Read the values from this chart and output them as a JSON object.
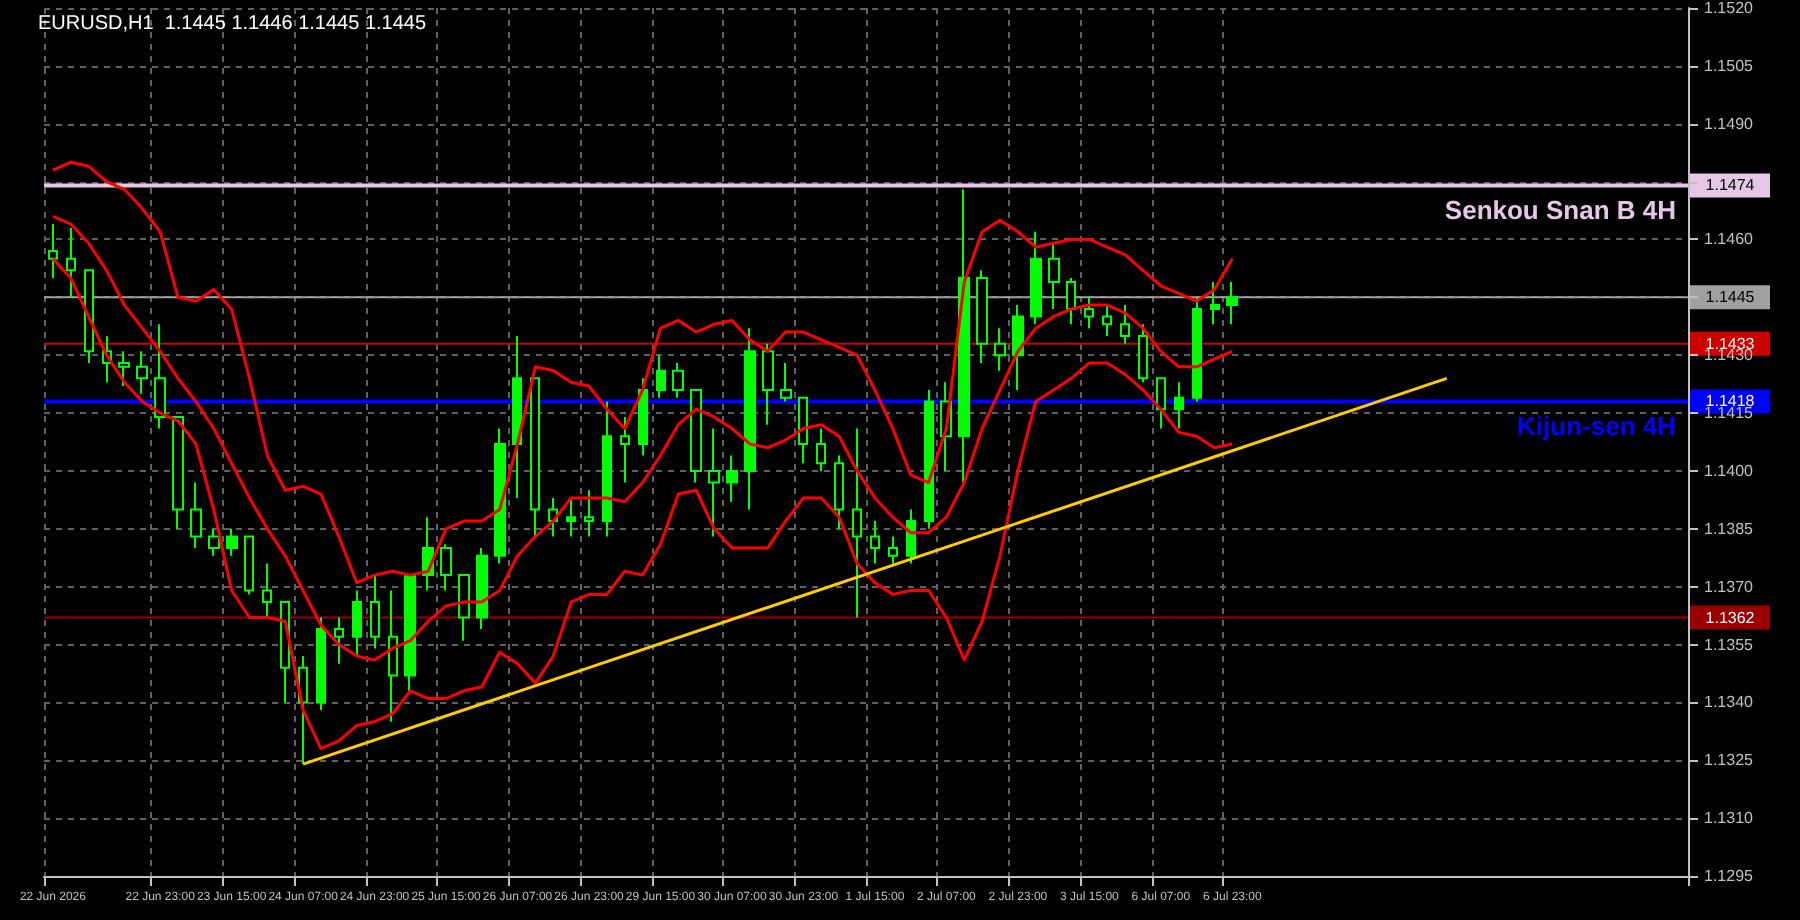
{
  "chart_data": {
    "type": "candlestick",
    "title": "EURUSD,H1  1.1445 1.1446 1.1445 1.1445",
    "categories": [
      "22 Jun 2026",
      null,
      null,
      null,
      null,
      null,
      "22 Jun 23:00",
      null,
      null,
      null,
      "23 Jun 15:00",
      null,
      null,
      null,
      "24 Jun 07:00",
      null,
      null,
      null,
      "24 Jun 23:00",
      null,
      null,
      null,
      "25 Jun 15:00",
      null,
      null,
      null,
      "26 Jun 07:00",
      null,
      null,
      null,
      "26 Jun 23:00",
      null,
      null,
      null,
      "29 Jun 15:00",
      null,
      null,
      null,
      "30 Jun 07:00",
      null,
      null,
      null,
      "30 Jun 23:00",
      null,
      null,
      null,
      "1 Jul 15:00",
      null,
      null,
      null,
      "2 Jul 07:00",
      null,
      null,
      null,
      "2 Jul 23:00",
      null,
      null,
      null,
      "3 Jul 15:00",
      null,
      null,
      null,
      "6 Jul 07:00",
      null,
      null,
      null,
      "6 Jul 23:00",
      null,
      null,
      null,
      null,
      null,
      null,
      null,
      null,
      null,
      null,
      null,
      null,
      null,
      null,
      null,
      null,
      null,
      null,
      null,
      null,
      null,
      null,
      null,
      null,
      null
    ],
    "series": [
      {
        "color": "#00ff00",
        "ohlc": [
          [
            1.1457,
            1.1464,
            1.145,
            1.1455
          ],
          [
            1.1455,
            1.1463,
            1.1445,
            1.1452
          ],
          [
            1.1452,
            1.1452,
            1.1428,
            1.1431
          ],
          [
            1.1431,
            1.1435,
            1.1423,
            1.1428
          ],
          [
            1.1428,
            1.1431,
            1.1422,
            1.1427
          ],
          [
            1.1427,
            1.1431,
            1.142,
            1.1424
          ],
          [
            1.1424,
            1.1438,
            1.1411,
            1.1414
          ],
          [
            1.1414,
            1.1414,
            1.1385,
            1.139
          ],
          [
            1.139,
            1.1397,
            1.138,
            1.1383
          ],
          [
            1.1383,
            1.1385,
            1.1378,
            1.138
          ],
          [
            1.138,
            1.1385,
            1.1378,
            1.1383
          ],
          [
            1.1383,
            1.1383,
            1.1368,
            1.1369
          ],
          [
            1.1369,
            1.1376,
            1.1362,
            1.1366
          ],
          [
            1.1366,
            1.1366,
            1.134,
            1.1349
          ],
          [
            1.1349,
            1.1352,
            1.1324,
            1.134
          ],
          [
            1.134,
            1.1362,
            1.1338,
            1.1359
          ],
          [
            1.1359,
            1.1362,
            1.135,
            1.1357
          ],
          [
            1.1357,
            1.1369,
            1.1352,
            1.1366
          ],
          [
            1.1366,
            1.1373,
            1.1354,
            1.1357
          ],
          [
            1.1357,
            1.1369,
            1.1335,
            1.1347
          ],
          [
            1.1347,
            1.1373,
            1.1343,
            1.1373
          ],
          [
            1.1373,
            1.1388,
            1.1369,
            1.138
          ],
          [
            1.138,
            1.1381,
            1.1369,
            1.1373
          ],
          [
            1.1373,
            1.1373,
            1.1356,
            1.1362
          ],
          [
            1.1362,
            1.138,
            1.1359,
            1.1378
          ],
          [
            1.1378,
            1.1411,
            1.1376,
            1.1407
          ],
          [
            1.1407,
            1.1435,
            1.1393,
            1.1424
          ],
          [
            1.1424,
            1.1424,
            1.1383,
            1.139
          ],
          [
            1.139,
            1.1393,
            1.1383,
            1.1387
          ],
          [
            1.1387,
            1.1393,
            1.1383,
            1.1388
          ],
          [
            1.1388,
            1.1395,
            1.1383,
            1.1387
          ],
          [
            1.1387,
            1.1418,
            1.1383,
            1.1409
          ],
          [
            1.1409,
            1.1414,
            1.1397,
            1.1407
          ],
          [
            1.1407,
            1.1424,
            1.1404,
            1.1421
          ],
          [
            1.1421,
            1.143,
            1.1419,
            1.1426
          ],
          [
            1.1426,
            1.1428,
            1.1419,
            1.1421
          ],
          [
            1.1421,
            1.1421,
            1.1397,
            1.14
          ],
          [
            1.14,
            1.1411,
            1.1383,
            1.1397
          ],
          [
            1.1397,
            1.1404,
            1.1392,
            1.14
          ],
          [
            1.14,
            1.1437,
            1.139,
            1.1431
          ],
          [
            1.1431,
            1.1433,
            1.1412,
            1.1421
          ],
          [
            1.1421,
            1.1428,
            1.1418,
            1.1419
          ],
          [
            1.1419,
            1.1419,
            1.1402,
            1.1407
          ],
          [
            1.1407,
            1.1411,
            1.14,
            1.1402
          ],
          [
            1.1402,
            1.1404,
            1.1385,
            1.139
          ],
          [
            1.139,
            1.1411,
            1.1362,
            1.1383
          ],
          [
            1.1383,
            1.1387,
            1.1376,
            1.138
          ],
          [
            1.138,
            1.1383,
            1.1376,
            1.1378
          ],
          [
            1.1378,
            1.139,
            1.1376,
            1.1387
          ],
          [
            1.1387,
            1.1421,
            1.1385,
            1.1418
          ],
          [
            1.1418,
            1.1423,
            1.14,
            1.1409
          ],
          [
            1.1409,
            1.1473,
            1.1397,
            1.145
          ],
          [
            1.145,
            1.1452,
            1.1428,
            1.1433
          ],
          [
            1.1433,
            1.1437,
            1.1426,
            1.143
          ],
          [
            1.143,
            1.1443,
            1.1421,
            1.144
          ],
          [
            1.144,
            1.1462,
            1.1438,
            1.1455
          ],
          [
            1.1455,
            1.1459,
            1.1442,
            1.1449
          ],
          [
            1.1449,
            1.145,
            1.1438,
            1.1442
          ],
          [
            1.1442,
            1.1445,
            1.1437,
            1.144
          ],
          [
            1.144,
            1.1443,
            1.1435,
            1.1438
          ],
          [
            1.1438,
            1.1443,
            1.1433,
            1.1435
          ],
          [
            1.1435,
            1.1438,
            1.1423,
            1.1424
          ],
          [
            1.1424,
            1.1424,
            1.1411,
            1.1416
          ],
          [
            1.1416,
            1.1423,
            1.1411,
            1.1419
          ],
          [
            1.1419,
            1.1445,
            1.1418,
            1.1442
          ],
          [
            1.1442,
            1.1449,
            1.1438,
            1.1443
          ],
          [
            1.1443,
            1.1449,
            1.1438,
            1.1445
          ],
          null,
          null,
          null,
          null,
          null,
          null,
          null,
          null,
          null,
          null,
          null,
          null,
          null,
          null,
          null,
          null,
          null,
          null,
          null,
          null,
          null,
          null,
          null,
          null,
          null
        ]
      },
      {
        "type": "line",
        "color": "#ff0000",
        "values": [
          1.1478,
          1.148,
          1.1479,
          1.1475,
          1.1473,
          1.1468,
          1.1462,
          1.1445,
          1.1444,
          1.1447,
          1.1442,
          1.1424,
          1.1404,
          1.1395,
          1.1396,
          1.1394,
          1.1383,
          1.1371,
          1.1373,
          1.1374,
          1.1373,
          1.1374,
          1.1385,
          1.1387,
          1.1387,
          1.139,
          1.1407,
          1.1427,
          1.1426,
          1.1423,
          1.1422,
          1.1416,
          1.1411,
          1.1421,
          1.1437,
          1.1439,
          1.1436,
          1.1438,
          1.1439,
          1.1434,
          1.1431,
          1.1436,
          1.1436,
          1.1434,
          1.1432,
          1.143,
          1.1421,
          1.1411,
          1.1399,
          1.1397,
          1.1411,
          1.1449,
          1.1462,
          1.1465,
          1.1462,
          1.1458,
          1.1459,
          1.146,
          1.146,
          1.1458,
          1.1456,
          1.1452,
          1.1448,
          1.1446,
          1.1444,
          1.1447,
          1.1455,
          null,
          null,
          null,
          null,
          null,
          null,
          null,
          null,
          null,
          null,
          null,
          null,
          null,
          null,
          null,
          null,
          null,
          null,
          null,
          null,
          null,
          null,
          null,
          null,
          null
        ]
      },
      {
        "type": "line",
        "color": "#ff0000",
        "values": [
          1.1466,
          1.1464,
          1.1459,
          1.1452,
          1.1443,
          1.1437,
          1.1431,
          1.1424,
          1.1418,
          1.1411,
          1.1402,
          1.1393,
          1.1385,
          1.1378,
          1.1369,
          1.136,
          1.1355,
          1.1352,
          1.1351,
          1.1354,
          1.1356,
          1.1361,
          1.1365,
          1.1366,
          1.1366,
          1.1369,
          1.1378,
          1.1383,
          1.1387,
          1.1393,
          1.1393,
          1.1393,
          1.1392,
          1.1397,
          1.1404,
          1.1412,
          1.1416,
          1.1414,
          1.1411,
          1.1407,
          1.1406,
          1.1408,
          1.1411,
          1.1412,
          1.1409,
          1.14,
          1.1393,
          1.1388,
          1.1384,
          1.1384,
          1.1388,
          1.1397,
          1.1411,
          1.1421,
          1.1431,
          1.1437,
          1.144,
          1.1442,
          1.1443,
          1.1443,
          1.1441,
          1.1437,
          1.1431,
          1.1427,
          1.1427,
          1.1429,
          1.1431,
          null,
          null,
          null,
          null,
          null,
          null,
          null,
          null,
          null,
          null,
          null,
          null,
          null,
          null,
          null,
          null,
          null,
          null,
          null,
          null,
          null,
          null,
          null,
          null,
          null
        ]
      },
      {
        "type": "line",
        "color": "#ff0000",
        "values": [
          1.1455,
          1.145,
          1.144,
          1.143,
          1.1423,
          1.1418,
          1.1415,
          1.1413,
          1.1407,
          1.139,
          1.1369,
          1.1362,
          1.1362,
          1.1361,
          1.1338,
          1.1328,
          1.133,
          1.1334,
          1.1335,
          1.1337,
          1.1343,
          1.1341,
          1.1341,
          1.1343,
          1.1344,
          1.1353,
          1.135,
          1.1345,
          1.1352,
          1.1366,
          1.1368,
          1.1368,
          1.1374,
          1.1373,
          1.1381,
          1.1394,
          1.1395,
          1.1385,
          1.138,
          1.138,
          1.138,
          1.1387,
          1.1393,
          1.1393,
          1.1388,
          1.1376,
          1.1371,
          1.1368,
          1.1369,
          1.1369,
          1.1362,
          1.1351,
          1.1361,
          1.1378,
          1.14,
          1.1418,
          1.1421,
          1.1424,
          1.1428,
          1.1428,
          1.1425,
          1.1421,
          1.1416,
          1.141,
          1.1409,
          1.1406,
          1.1407,
          null,
          null,
          null,
          null,
          null,
          null,
          null,
          null,
          null,
          null,
          null,
          null,
          null,
          null,
          null,
          null,
          null,
          null,
          null,
          null,
          null,
          null,
          null,
          null,
          null
        ]
      },
      {
        "type": "line",
        "color": "#ffcc00",
        "values": [
          null,
          null,
          null,
          null,
          null,
          null,
          null,
          null,
          null,
          null,
          null,
          null,
          null,
          null,
          1.1324,
          null,
          null,
          null,
          null,
          null,
          null,
          null,
          null,
          null,
          null,
          null,
          null,
          null,
          null,
          null,
          null,
          null,
          null,
          null,
          null,
          null,
          null,
          null,
          null,
          null,
          null,
          null,
          null,
          null,
          null,
          null,
          null,
          null,
          null,
          null,
          null,
          null,
          null,
          null,
          null,
          null,
          null,
          null,
          null,
          null,
          null,
          null,
          null,
          null,
          null,
          null,
          null,
          null,
          null,
          null,
          null,
          null,
          null,
          null,
          null,
          null,
          null,
          null,
          1.1424,
          null,
          null,
          null,
          null,
          null,
          null,
          null,
          null,
          null,
          null,
          null,
          null,
          null
        ]
      }
    ],
    "ylim": [
      1.1295,
      1.152
    ],
    "yticks": [
      1.1295,
      {
        "value": 1.131,
        "label": "1.1310"
      },
      1.1325,
      {
        "value": 1.134,
        "label": "1.1340"
      },
      1.1355,
      {
        "value": 1.137,
        "label": "1.1370"
      },
      1.1385,
      {
        "value": 1.14,
        "label": "1.1400"
      },
      1.1415,
      {
        "value": 1.143,
        "label": "1.1430"
      },
      {
        "value": 1.1445,
        "label": null
      },
      {
        "value": 1.146,
        "label": "1.1460"
      },
      {
        "value": 1.1475,
        "label": null
      },
      {
        "value": 1.149,
        "label": "1.1490"
      },
      1.1505,
      {
        "value": 1.152,
        "label": "1.1520"
      }
    ],
    "ref_lines": [
      {
        "axis": "y",
        "value": 1.1474,
        "label": "Senkou Snan B 4H",
        "color": "#e6c8e6"
      },
      {
        "axis": "y",
        "value": 1.1445,
        "label": null,
        "color": "#a0a0a0"
      },
      {
        "axis": "y",
        "value": 1.1433,
        "label": null,
        "color": "#cc0000"
      },
      {
        "axis": "y",
        "value": 1.1418,
        "label": "Kijun-sen 4H",
        "color": "#0000ff"
      },
      {
        "axis": "y",
        "value": 1.1362,
        "label": null,
        "color": "#990000"
      }
    ],
    "annotations": [
      {
        "text": "1.1474",
        "y": 1.1474
      },
      {
        "text": "1.1445",
        "y": 1.1445
      },
      {
        "text": "1.1433",
        "y": 1.1433
      },
      {
        "text": "1.1418",
        "y": 1.1418
      },
      {
        "text": "1.1362",
        "y": 1.1362
      }
    ],
    "grid": true
  }
}
